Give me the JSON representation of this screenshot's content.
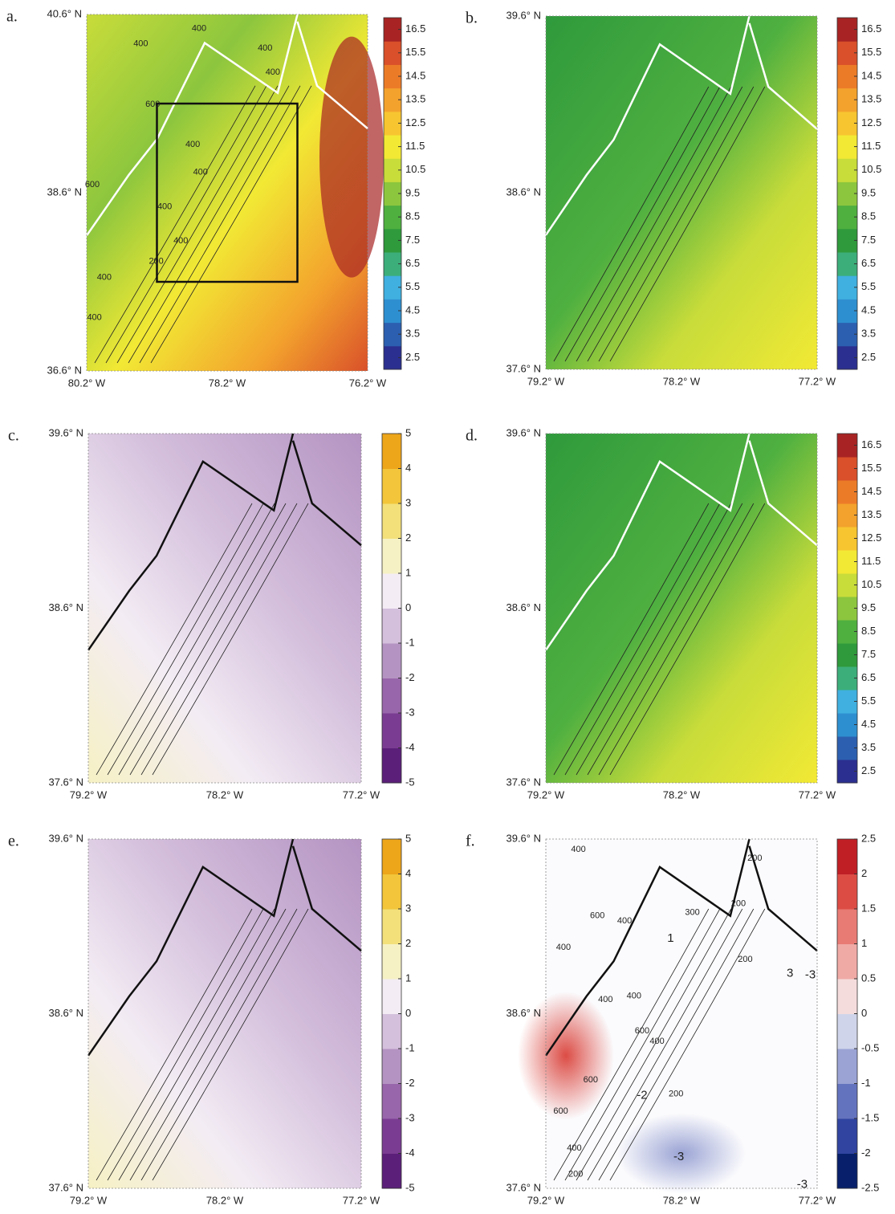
{
  "panels": [
    {
      "label": "a.",
      "xlim": [
        -80.2,
        -76.2
      ],
      "ylim": [
        36.6,
        40.6
      ],
      "xticks": [
        {
          "value": -80.2,
          "label": "80.2° W"
        },
        {
          "value": -78.2,
          "label": "78.2° W"
        },
        {
          "value": -76.2,
          "label": "76.2° W"
        }
      ],
      "yticks": [
        {
          "value": 36.6,
          "label": "36.6° N"
        },
        {
          "value": 38.6,
          "label": "38.6° N"
        },
        {
          "value": 40.6,
          "label": "40.6° N"
        }
      ],
      "clim": [
        2,
        17
      ],
      "cticks": [
        2.5,
        3.5,
        4.5,
        5.5,
        6.5,
        7.5,
        8.5,
        9.5,
        10.5,
        11.5,
        12.5,
        13.5,
        14.5,
        15.5,
        16.5
      ],
      "colors": [
        "#2b2f8f",
        "#2c5fb0",
        "#2e8fd0",
        "#40b0e0",
        "#3cae7a",
        "#2f9a3c",
        "#4fb040",
        "#8cc63e",
        "#c8dc3a",
        "#f2e934",
        "#f7c530",
        "#f3a22d",
        "#ec7b28",
        "#d9502a",
        "#a82424"
      ],
      "box": {
        "lon": [
          -79.2,
          -77.2
        ],
        "lat": [
          37.6,
          39.6
        ]
      },
      "contour_labels": [
        {
          "text": "400",
          "lon": -78.6,
          "lat": 40.44
        },
        {
          "text": "400",
          "lon": -79.43,
          "lat": 40.27
        },
        {
          "text": "400",
          "lon": -77.66,
          "lat": 40.22
        },
        {
          "text": "400",
          "lon": -77.55,
          "lat": 39.95
        },
        {
          "text": "600",
          "lon": -79.26,
          "lat": 39.59
        },
        {
          "text": "400",
          "lon": -78.69,
          "lat": 39.14
        },
        {
          "text": "400",
          "lon": -78.58,
          "lat": 38.83
        },
        {
          "text": "400",
          "lon": -79.09,
          "lat": 38.44
        },
        {
          "text": "400",
          "lon": -78.86,
          "lat": 38.06
        },
        {
          "text": "200",
          "lon": -79.21,
          "lat": 37.83
        },
        {
          "text": "600",
          "lon": -80.12,
          "lat": 38.69
        },
        {
          "text": "400",
          "lon": -79.95,
          "lat": 37.65
        },
        {
          "text": "400",
          "lon": -80.09,
          "lat": 37.2
        }
      ]
    },
    {
      "label": "b.",
      "xlim": [
        -79.2,
        -77.2
      ],
      "ylim": [
        37.6,
        39.6
      ],
      "xticks": [
        {
          "value": -79.2,
          "label": "79.2° W"
        },
        {
          "value": -78.2,
          "label": "78.2° W"
        },
        {
          "value": -77.2,
          "label": "77.2° W"
        }
      ],
      "yticks": [
        {
          "value": 37.6,
          "label": "37.6° N"
        },
        {
          "value": 38.6,
          "label": "38.6° N"
        },
        {
          "value": 39.6,
          "label": "39.6° N"
        }
      ],
      "clim": [
        2,
        17
      ],
      "cticks": [
        2.5,
        3.5,
        4.5,
        5.5,
        6.5,
        7.5,
        8.5,
        9.5,
        10.5,
        11.5,
        12.5,
        13.5,
        14.5,
        15.5,
        16.5
      ],
      "colors": [
        "#2b2f8f",
        "#2c5fb0",
        "#2e8fd0",
        "#40b0e0",
        "#3cae7a",
        "#2f9a3c",
        "#4fb040",
        "#8cc63e",
        "#c8dc3a",
        "#f2e934",
        "#f7c530",
        "#f3a22d",
        "#ec7b28",
        "#d9502a",
        "#a82424"
      ]
    },
    {
      "label": "c.",
      "xlim": [
        -79.2,
        -77.2
      ],
      "ylim": [
        37.6,
        39.6
      ],
      "xticks": [
        {
          "value": -79.2,
          "label": "79.2° W"
        },
        {
          "value": -78.2,
          "label": "78.2° W"
        },
        {
          "value": -77.2,
          "label": "77.2° W"
        }
      ],
      "yticks": [
        {
          "value": 37.6,
          "label": "37.6° N"
        },
        {
          "value": 38.6,
          "label": "38.6° N"
        },
        {
          "value": 39.6,
          "label": "39.6° N"
        }
      ],
      "clim": [
        -5,
        5
      ],
      "cticks": [
        -5,
        -4,
        -3,
        -2,
        -1,
        0,
        1,
        2,
        3,
        4,
        5
      ],
      "colors": [
        "#5b1f7a",
        "#7a3c92",
        "#9866aa",
        "#b493c2",
        "#d4bfdc",
        "#f3ecf4",
        "#f6f1c4",
        "#f3e07a",
        "#f2c53a",
        "#eda51a"
      ]
    },
    {
      "label": "d.",
      "xlim": [
        -79.2,
        -77.2
      ],
      "ylim": [
        37.6,
        39.6
      ],
      "xticks": [
        {
          "value": -79.2,
          "label": "79.2° W"
        },
        {
          "value": -78.2,
          "label": "78.2° W"
        },
        {
          "value": -77.2,
          "label": "77.2° W"
        }
      ],
      "yticks": [
        {
          "value": 37.6,
          "label": "37.6° N"
        },
        {
          "value": 38.6,
          "label": "38.6° N"
        },
        {
          "value": 39.6,
          "label": "39.6° N"
        }
      ],
      "clim": [
        2,
        17
      ],
      "cticks": [
        2.5,
        3.5,
        4.5,
        5.5,
        6.5,
        7.5,
        8.5,
        9.5,
        10.5,
        11.5,
        12.5,
        13.5,
        14.5,
        15.5,
        16.5
      ],
      "colors": [
        "#2b2f8f",
        "#2c5fb0",
        "#2e8fd0",
        "#40b0e0",
        "#3cae7a",
        "#2f9a3c",
        "#4fb040",
        "#8cc63e",
        "#c8dc3a",
        "#f2e934",
        "#f7c530",
        "#f3a22d",
        "#ec7b28",
        "#d9502a",
        "#a82424"
      ]
    },
    {
      "label": "e.",
      "xlim": [
        -79.2,
        -77.2
      ],
      "ylim": [
        37.6,
        39.6
      ],
      "xticks": [
        {
          "value": -79.2,
          "label": "79.2° W"
        },
        {
          "value": -78.2,
          "label": "78.2° W"
        },
        {
          "value": -77.2,
          "label": "77.2° W"
        }
      ],
      "yticks": [
        {
          "value": 37.6,
          "label": "37.6° N"
        },
        {
          "value": 38.6,
          "label": "38.6° N"
        },
        {
          "value": 39.6,
          "label": "39.6° N"
        }
      ],
      "clim": [
        -5,
        5
      ],
      "cticks": [
        -5,
        -4,
        -3,
        -2,
        -1,
        0,
        1,
        2,
        3,
        4,
        5
      ],
      "colors": [
        "#5b1f7a",
        "#7a3c92",
        "#9866aa",
        "#b493c2",
        "#d4bfdc",
        "#f3ecf4",
        "#f6f1c4",
        "#f3e07a",
        "#f2c53a",
        "#eda51a"
      ]
    },
    {
      "label": "f.",
      "xlim": [
        -79.2,
        -77.2
      ],
      "ylim": [
        37.6,
        39.6
      ],
      "xticks": [
        {
          "value": -79.2,
          "label": "79.2° W"
        },
        {
          "value": -78.2,
          "label": "78.2° W"
        },
        {
          "value": -77.2,
          "label": "77.2° W"
        }
      ],
      "yticks": [
        {
          "value": 37.6,
          "label": "37.6° N"
        },
        {
          "value": 38.6,
          "label": "38.6° N"
        },
        {
          "value": 39.6,
          "label": "39.6° N"
        }
      ],
      "clim": [
        -2.5,
        2.5
      ],
      "cticks": [
        -2.5,
        -2,
        -1.5,
        -1,
        -0.5,
        0,
        0.5,
        1,
        1.5,
        2,
        2.5
      ],
      "colors": [
        "#08206b",
        "#3044a0",
        "#6473be",
        "#9aa3d4",
        "#d0d4ea",
        "#f5dcdc",
        "#f0aaa6",
        "#e87b74",
        "#dc4c45",
        "#c01f26"
      ],
      "contour_labels": [
        {
          "text": "400",
          "lon": -78.96,
          "lat": 39.54
        },
        {
          "text": "200",
          "lon": -77.66,
          "lat": 39.49
        },
        {
          "text": "600",
          "lon": -78.82,
          "lat": 39.16
        },
        {
          "text": "400",
          "lon": -78.62,
          "lat": 39.13
        },
        {
          "text": "300",
          "lon": -78.12,
          "lat": 39.18
        },
        {
          "text": "200",
          "lon": -77.78,
          "lat": 39.23
        },
        {
          "text": "400",
          "lon": -79.07,
          "lat": 38.98
        },
        {
          "text": "200",
          "lon": -77.73,
          "lat": 38.91
        },
        {
          "text": "400",
          "lon": -78.55,
          "lat": 38.7
        },
        {
          "text": "400",
          "lon": -78.76,
          "lat": 38.68
        },
        {
          "text": "600",
          "lon": -78.49,
          "lat": 38.5
        },
        {
          "text": "400",
          "lon": -78.38,
          "lat": 38.44
        },
        {
          "text": "600",
          "lon": -78.87,
          "lat": 38.22
        },
        {
          "text": "200",
          "lon": -78.24,
          "lat": 38.14
        },
        {
          "text": "600",
          "lon": -79.09,
          "lat": 38.04
        },
        {
          "text": "400",
          "lon": -78.99,
          "lat": 37.83
        },
        {
          "text": "200",
          "lon": -78.98,
          "lat": 37.68
        },
        {
          "text": "-2",
          "lon": -78.49,
          "lat": 38.13,
          "color": "#3aa03a"
        },
        {
          "text": "-3",
          "lon": -78.22,
          "lat": 37.78,
          "color": "#3aa03a"
        },
        {
          "text": "3",
          "lon": -77.4,
          "lat": 38.83,
          "color": "#3aa03a"
        },
        {
          "text": "-3",
          "lon": -77.25,
          "lat": 38.82,
          "color": "#3aa03a"
        },
        {
          "text": "1",
          "lon": -78.28,
          "lat": 39.03,
          "color": "#3aa03a"
        },
        {
          "text": "-3",
          "lon": -77.31,
          "lat": 37.62,
          "color": "#3aa03a"
        }
      ]
    }
  ]
}
